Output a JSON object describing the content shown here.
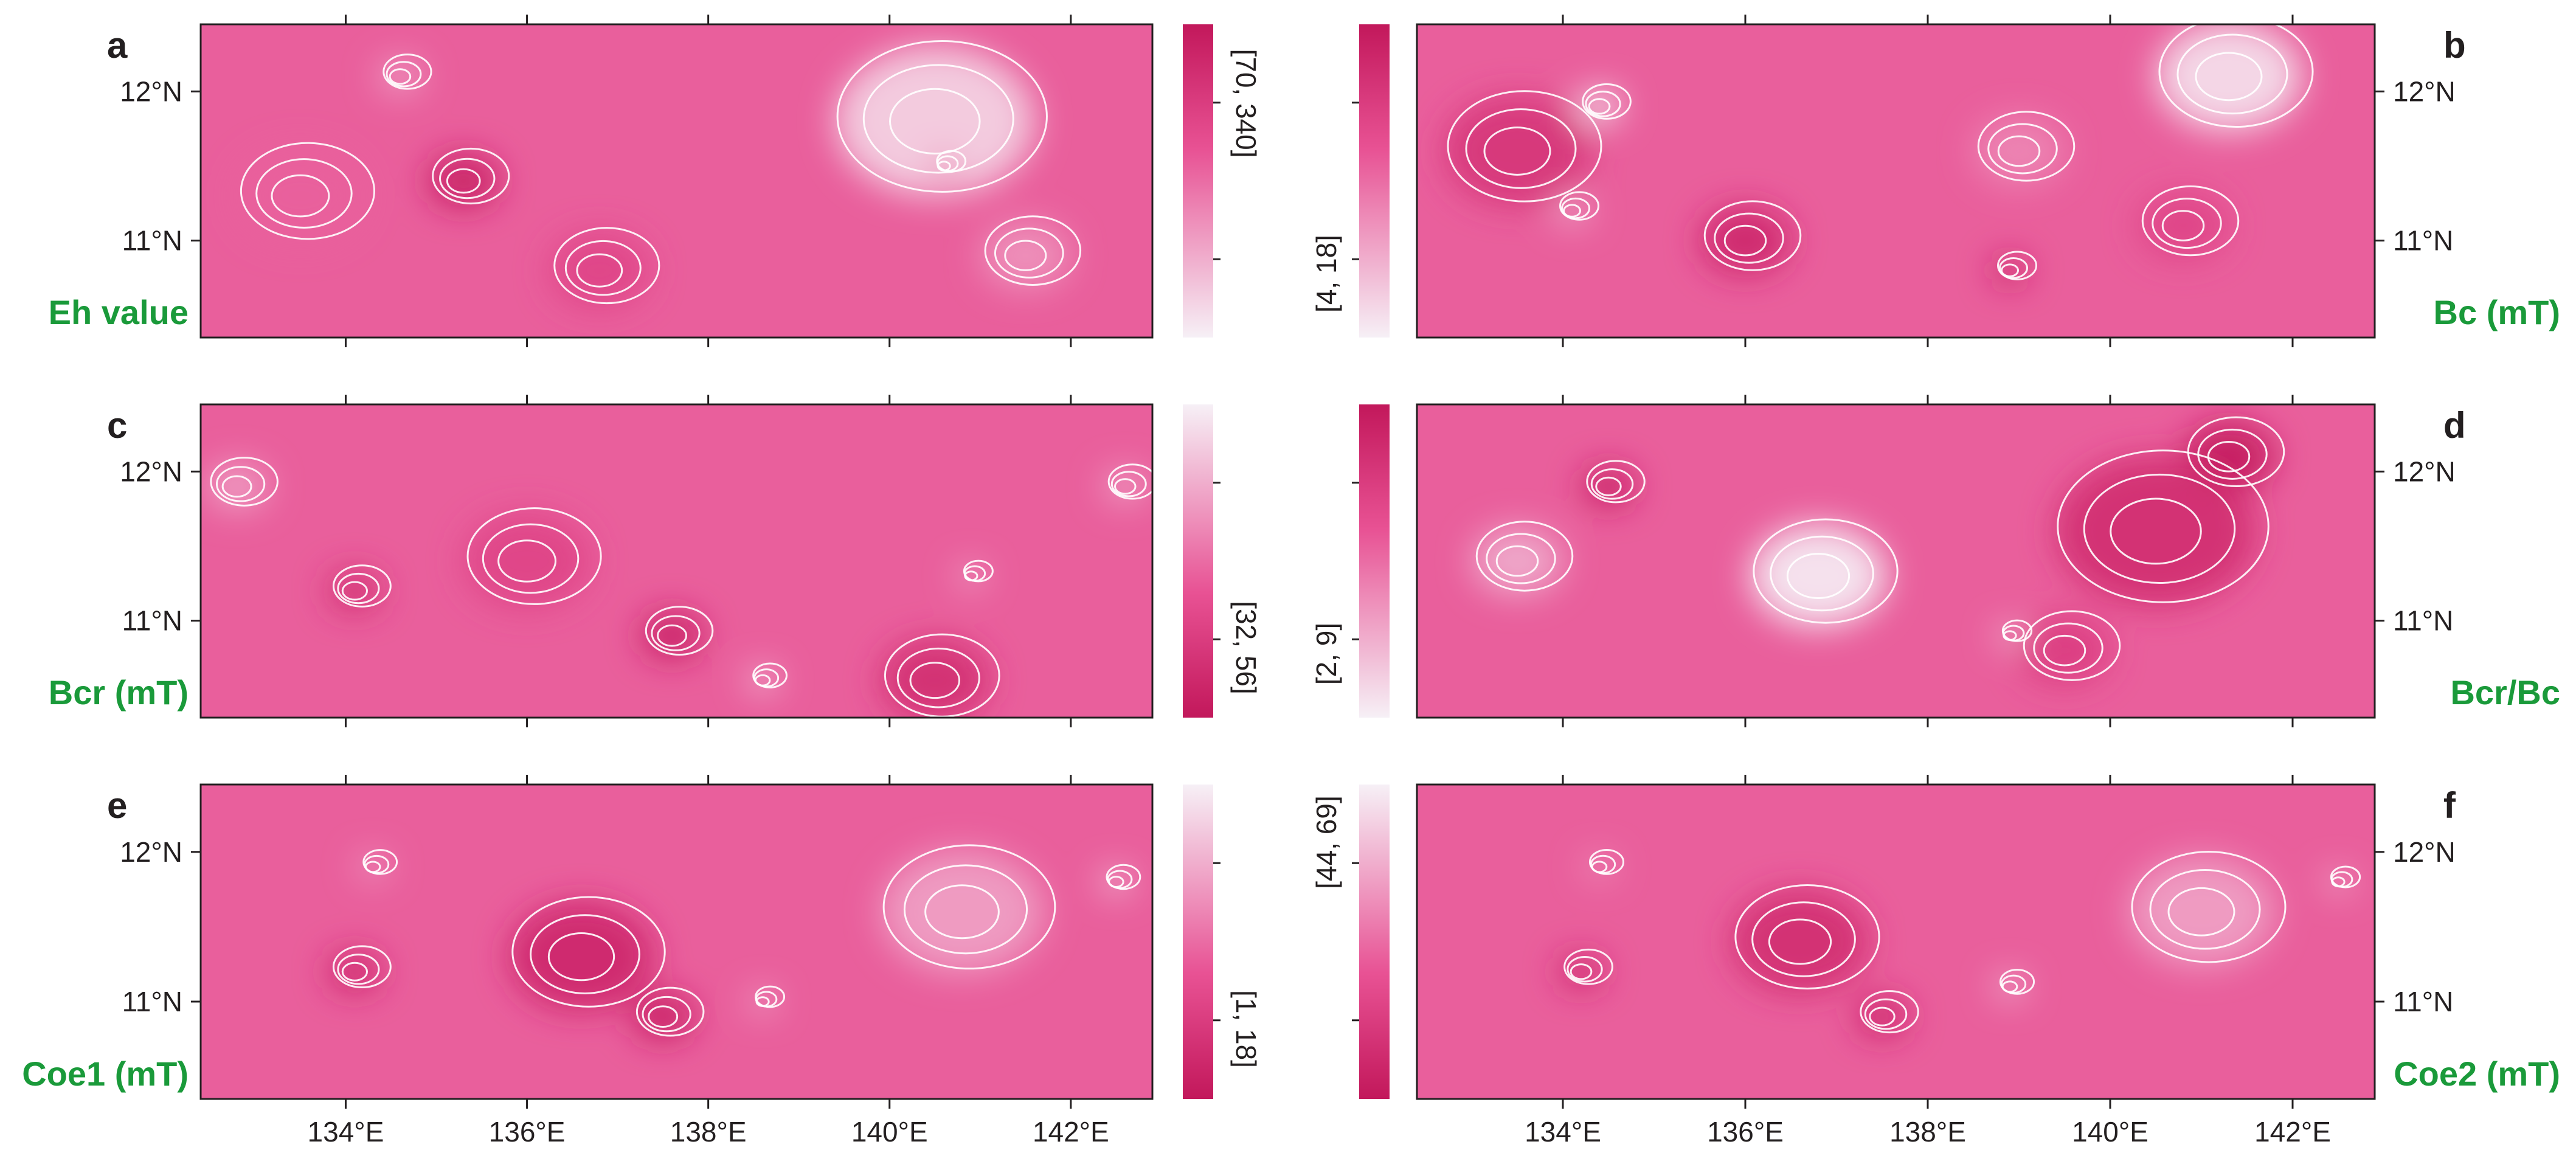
{
  "colors": {
    "label_green": "#1a9a3a",
    "scale_low": "#f6f0f6",
    "scale_high": "#c2185b",
    "contour": "#ffffff",
    "frame": "#231f20"
  },
  "chart_data": [
    {
      "type": "heatmap",
      "panel": "a",
      "label": "Eh value",
      "colorbar_range": "[70, 340]",
      "colorbar_side": "right",
      "colorbar_direction": "high-top",
      "lat_axis_side": "left",
      "show_lon_labels": false,
      "x_ticks": [
        "134°E",
        "136°E",
        "138°E",
        "140°E",
        "142°E"
      ],
      "y_ticks": [
        "11°N",
        "12°N"
      ],
      "xlim": [
        132.4,
        142.9
      ],
      "ylim": [
        10.35,
        12.45
      ],
      "features": [
        {
          "lon": 133.5,
          "lat": 11.3,
          "value": 0.55,
          "radius": 1.4
        },
        {
          "lon": 135.3,
          "lat": 11.4,
          "value": 0.95,
          "radius": 0.8
        },
        {
          "lon": 136.8,
          "lat": 10.8,
          "value": 0.7,
          "radius": 1.1
        },
        {
          "lon": 134.6,
          "lat": 12.1,
          "value": 0.3,
          "radius": 0.5
        },
        {
          "lon": 140.5,
          "lat": 11.8,
          "value": 0.1,
          "radius": 2.2
        },
        {
          "lon": 141.5,
          "lat": 10.9,
          "value": 0.35,
          "radius": 1.0
        },
        {
          "lon": 140.6,
          "lat": 11.5,
          "value": 0.55,
          "radius": 0.3
        }
      ]
    },
    {
      "type": "heatmap",
      "panel": "b",
      "label": "Bc (mT)",
      "colorbar_range": "[4, 18]",
      "colorbar_side": "left",
      "colorbar_direction": "high-top",
      "lat_axis_side": "right",
      "show_lon_labels": false,
      "x_ticks": [
        "134°E",
        "136°E",
        "138°E",
        "140°E",
        "142°E"
      ],
      "y_ticks": [
        "11°N",
        "12°N"
      ],
      "xlim": [
        132.4,
        142.9
      ],
      "ylim": [
        10.35,
        12.45
      ],
      "features": [
        {
          "lon": 133.5,
          "lat": 11.6,
          "value": 0.8,
          "radius": 1.6
        },
        {
          "lon": 136.0,
          "lat": 11.0,
          "value": 0.9,
          "radius": 1.0
        },
        {
          "lon": 134.4,
          "lat": 11.9,
          "value": 0.05,
          "radius": 0.5
        },
        {
          "lon": 134.1,
          "lat": 11.2,
          "value": 0.25,
          "radius": 0.4
        },
        {
          "lon": 141.3,
          "lat": 12.1,
          "value": 0.05,
          "radius": 1.6
        },
        {
          "lon": 138.9,
          "lat": 10.8,
          "value": 0.95,
          "radius": 0.4
        },
        {
          "lon": 140.8,
          "lat": 11.1,
          "value": 0.7,
          "radius": 1.0
        },
        {
          "lon": 139.0,
          "lat": 11.6,
          "value": 0.4,
          "radius": 1.0
        }
      ]
    },
    {
      "type": "heatmap",
      "panel": "c",
      "label": "Bcr (mT)",
      "colorbar_range": "[32, 56]",
      "colorbar_side": "right",
      "colorbar_direction": "high-bottom",
      "lat_axis_side": "left",
      "show_lon_labels": false,
      "x_ticks": [
        "134°E",
        "136°E",
        "138°E",
        "140°E",
        "142°E"
      ],
      "y_ticks": [
        "11°N",
        "12°N"
      ],
      "xlim": [
        132.4,
        142.9
      ],
      "ylim": [
        10.35,
        12.45
      ],
      "features": [
        {
          "lon": 134.1,
          "lat": 11.2,
          "value": 0.85,
          "radius": 0.6
        },
        {
          "lon": 137.6,
          "lat": 10.9,
          "value": 0.95,
          "radius": 0.7
        },
        {
          "lon": 136.0,
          "lat": 11.4,
          "value": 0.7,
          "radius": 1.4
        },
        {
          "lon": 140.5,
          "lat": 10.6,
          "value": 0.85,
          "radius": 1.2
        },
        {
          "lon": 138.6,
          "lat": 10.6,
          "value": 0.15,
          "radius": 0.35
        },
        {
          "lon": 140.9,
          "lat": 11.3,
          "value": 0.2,
          "radius": 0.3
        },
        {
          "lon": 132.8,
          "lat": 11.9,
          "value": 0.3,
          "radius": 0.7
        },
        {
          "lon": 142.6,
          "lat": 11.9,
          "value": 0.3,
          "radius": 0.5
        }
      ]
    },
    {
      "type": "heatmap",
      "panel": "d",
      "label": "Bcr/Bc",
      "colorbar_range": "[2, 9]",
      "colorbar_side": "left",
      "colorbar_direction": "high-top",
      "lat_axis_side": "right",
      "show_lon_labels": false,
      "x_ticks": [
        "134°E",
        "136°E",
        "138°E",
        "140°E",
        "142°E"
      ],
      "y_ticks": [
        "11°N",
        "12°N"
      ],
      "xlim": [
        132.4,
        142.9
      ],
      "ylim": [
        10.35,
        12.45
      ],
      "features": [
        {
          "lon": 134.5,
          "lat": 11.9,
          "value": 0.95,
          "radius": 0.6
        },
        {
          "lon": 141.3,
          "lat": 12.1,
          "value": 1.0,
          "radius": 1.0
        },
        {
          "lon": 140.5,
          "lat": 11.6,
          "value": 0.85,
          "radius": 2.2
        },
        {
          "lon": 139.5,
          "lat": 10.8,
          "value": 0.75,
          "radius": 1.0
        },
        {
          "lon": 136.8,
          "lat": 11.3,
          "value": 0.0,
          "radius": 1.5
        },
        {
          "lon": 133.5,
          "lat": 11.4,
          "value": 0.25,
          "radius": 1.0
        },
        {
          "lon": 138.9,
          "lat": 10.9,
          "value": 0.15,
          "radius": 0.3
        }
      ]
    },
    {
      "type": "heatmap",
      "panel": "e",
      "label": "Coe1 (mT)",
      "colorbar_range": "[1, 18]",
      "colorbar_side": "right",
      "colorbar_direction": "high-bottom",
      "lat_axis_side": "left",
      "show_lon_labels": true,
      "x_ticks": [
        "134°E",
        "136°E",
        "138°E",
        "140°E",
        "142°E"
      ],
      "y_ticks": [
        "11°N",
        "12°N"
      ],
      "xlim": [
        132.4,
        142.9
      ],
      "ylim": [
        10.35,
        12.45
      ],
      "features": [
        {
          "lon": 136.6,
          "lat": 11.3,
          "value": 0.9,
          "radius": 1.6
        },
        {
          "lon": 137.5,
          "lat": 10.9,
          "value": 0.95,
          "radius": 0.7
        },
        {
          "lon": 134.1,
          "lat": 11.2,
          "value": 0.9,
          "radius": 0.6
        },
        {
          "lon": 134.3,
          "lat": 11.9,
          "value": 0.3,
          "radius": 0.35
        },
        {
          "lon": 140.8,
          "lat": 11.6,
          "value": 0.3,
          "radius": 1.8
        },
        {
          "lon": 138.6,
          "lat": 11.0,
          "value": 0.2,
          "radius": 0.3
        },
        {
          "lon": 142.5,
          "lat": 11.8,
          "value": 0.15,
          "radius": 0.35
        }
      ]
    },
    {
      "type": "heatmap",
      "panel": "f",
      "label": "Coe2 (mT)",
      "colorbar_range": "[44, 69]",
      "colorbar_side": "left",
      "colorbar_direction": "low-top",
      "lat_axis_side": "right",
      "show_lon_labels": true,
      "x_ticks": [
        "134°E",
        "136°E",
        "138°E",
        "140°E",
        "142°E"
      ],
      "y_ticks": [
        "11°N",
        "12°N"
      ],
      "xlim": [
        132.4,
        142.9
      ],
      "ylim": [
        10.35,
        12.45
      ],
      "features": [
        {
          "lon": 136.6,
          "lat": 11.4,
          "value": 0.85,
          "radius": 1.5
        },
        {
          "lon": 134.2,
          "lat": 11.2,
          "value": 0.9,
          "radius": 0.5
        },
        {
          "lon": 137.5,
          "lat": 10.9,
          "value": 0.9,
          "radius": 0.6
        },
        {
          "lon": 134.4,
          "lat": 11.9,
          "value": 0.35,
          "radius": 0.35
        },
        {
          "lon": 138.9,
          "lat": 11.1,
          "value": 0.2,
          "radius": 0.35
        },
        {
          "lon": 141.0,
          "lat": 11.6,
          "value": 0.3,
          "radius": 1.6
        },
        {
          "lon": 142.5,
          "lat": 11.8,
          "value": 0.2,
          "radius": 0.3
        }
      ]
    }
  ]
}
